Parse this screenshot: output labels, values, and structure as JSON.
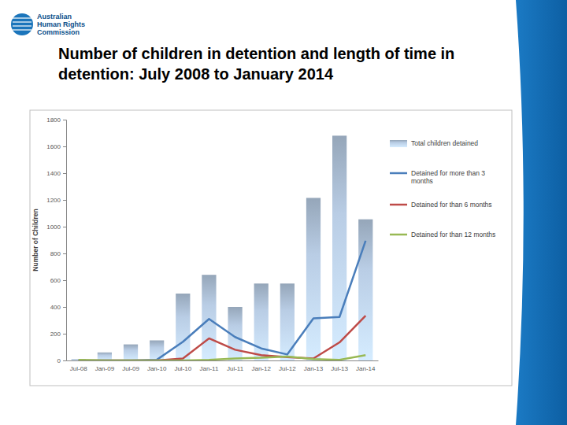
{
  "organization": [
    "Australian",
    "Human Rights",
    "Commission"
  ],
  "chart_data": {
    "type": "bar",
    "title": "Number of children in detention and length of time in detention: July 2008 to January 2014",
    "y_label": "Number of Children",
    "categories": [
      "Jul-08",
      "Jan-09",
      "Jul-09",
      "Jan-10",
      "Jul-10",
      "Jan-11",
      "Jul-11",
      "Jan-12",
      "Jul-12",
      "Jan-13",
      "Jul-13",
      "Jan-14"
    ],
    "series": [
      {
        "name": "Total children detained",
        "type": "bar",
        "color": "#b9cde5",
        "values": [
          10,
          60,
          120,
          150,
          500,
          640,
          400,
          575,
          575,
          1215,
          1680,
          1055
        ]
      },
      {
        "name": "Detained for more than 3 months",
        "type": "line",
        "color": "#4a7ebb",
        "values": [
          0,
          0,
          0,
          5,
          140,
          310,
          175,
          90,
          45,
          315,
          325,
          895
        ]
      },
      {
        "name": "Detained for than 6 months",
        "type": "line",
        "color": "#be4b48",
        "values": [
          0,
          0,
          0,
          0,
          15,
          165,
          80,
          40,
          25,
          15,
          135,
          335
        ]
      },
      {
        "name": "Detained for than 12 months",
        "type": "line",
        "color": "#98b954",
        "values": [
          5,
          0,
          0,
          0,
          0,
          5,
          15,
          20,
          30,
          10,
          5,
          40
        ]
      }
    ],
    "ylim": [
      0,
      1800
    ],
    "yticks": [
      0,
      200,
      400,
      600,
      800,
      1000,
      1200,
      1400,
      1600,
      1800
    ],
    "grid": false,
    "legend": "right"
  }
}
